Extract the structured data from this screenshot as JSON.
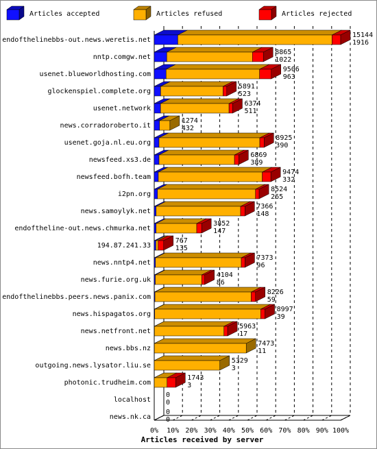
{
  "chart_data": {
    "type": "bar3d",
    "x_label": "Articles received by server",
    "categories": [
      "endofthelinebbs-out.news.weretis.net",
      "nntp.comgw.net",
      "usenet.blueworldhosting.com",
      "glockenspiel.complete.org",
      "usenet.network",
      "news.corradoroberto.it",
      "usenet.goja.nl.eu.org",
      "newsfeed.xs3.de",
      "newsfeed.bofh.team",
      "i2pn.org",
      "news.samoylyk.net",
      "endoftheline-out.news.chmurka.net",
      "194.87.241.33",
      "news.nntp4.net",
      "news.furie.org.uk",
      "endofthelinebbs.peers.news.panix.com",
      "news.hispagatos.org",
      "news.netfront.net",
      "news.bbs.nz",
      "outgoing.news.lysator.liu.se",
      "photonic.trudheim.com",
      "localhost",
      "news.nk.ca"
    ],
    "totals": [
      15144,
      8865,
      9506,
      5891,
      6374,
      1274,
      8925,
      6869,
      9474,
      8524,
      7366,
      3852,
      767,
      7373,
      4104,
      8226,
      8997,
      5963,
      7473,
      5329,
      1743,
      0,
      0
    ],
    "series": [
      {
        "name": "Articles accepted",
        "color": "#1010ff",
        "values": [
          1916,
          1022,
          963,
          523,
          511,
          432,
          390,
          389,
          332,
          265,
          148,
          147,
          135,
          96,
          86,
          59,
          39,
          17,
          11,
          3,
          3,
          0,
          0
        ]
      },
      {
        "name": "Articles refused",
        "color": "#ffb000",
        "values": [
          12528,
          6953,
          7593,
          5068,
          5563,
          842,
          8185,
          6130,
          8442,
          7959,
          6868,
          3305,
          182,
          6977,
          3768,
          7817,
          8608,
          5646,
          7462,
          5326,
          1040,
          0,
          0
        ]
      },
      {
        "name": "Articles rejected",
        "color": "#ff0000",
        "values": [
          700,
          890,
          950,
          300,
          300,
          0,
          350,
          350,
          700,
          300,
          350,
          400,
          450,
          300,
          250,
          350,
          350,
          300,
          0,
          0,
          700,
          0,
          0
        ]
      }
    ],
    "xlim": [
      0,
      15144
    ],
    "xticks": [
      {
        "value": 0,
        "label": "0%"
      },
      {
        "value": 1514.4,
        "label": "10%"
      },
      {
        "value": 3028.8,
        "label": "20%"
      },
      {
        "value": 4543.2,
        "label": "30%"
      },
      {
        "value": 6057.6,
        "label": "40%"
      },
      {
        "value": 7572,
        "label": "50%"
      },
      {
        "value": 9086.4,
        "label": "60%"
      },
      {
        "value": 10600.8,
        "label": "70%"
      },
      {
        "value": 12115.2,
        "label": "80%"
      },
      {
        "value": 13629.6,
        "label": "90%"
      },
      {
        "value": 15144,
        "label": "100%"
      }
    ],
    "grid": true
  }
}
